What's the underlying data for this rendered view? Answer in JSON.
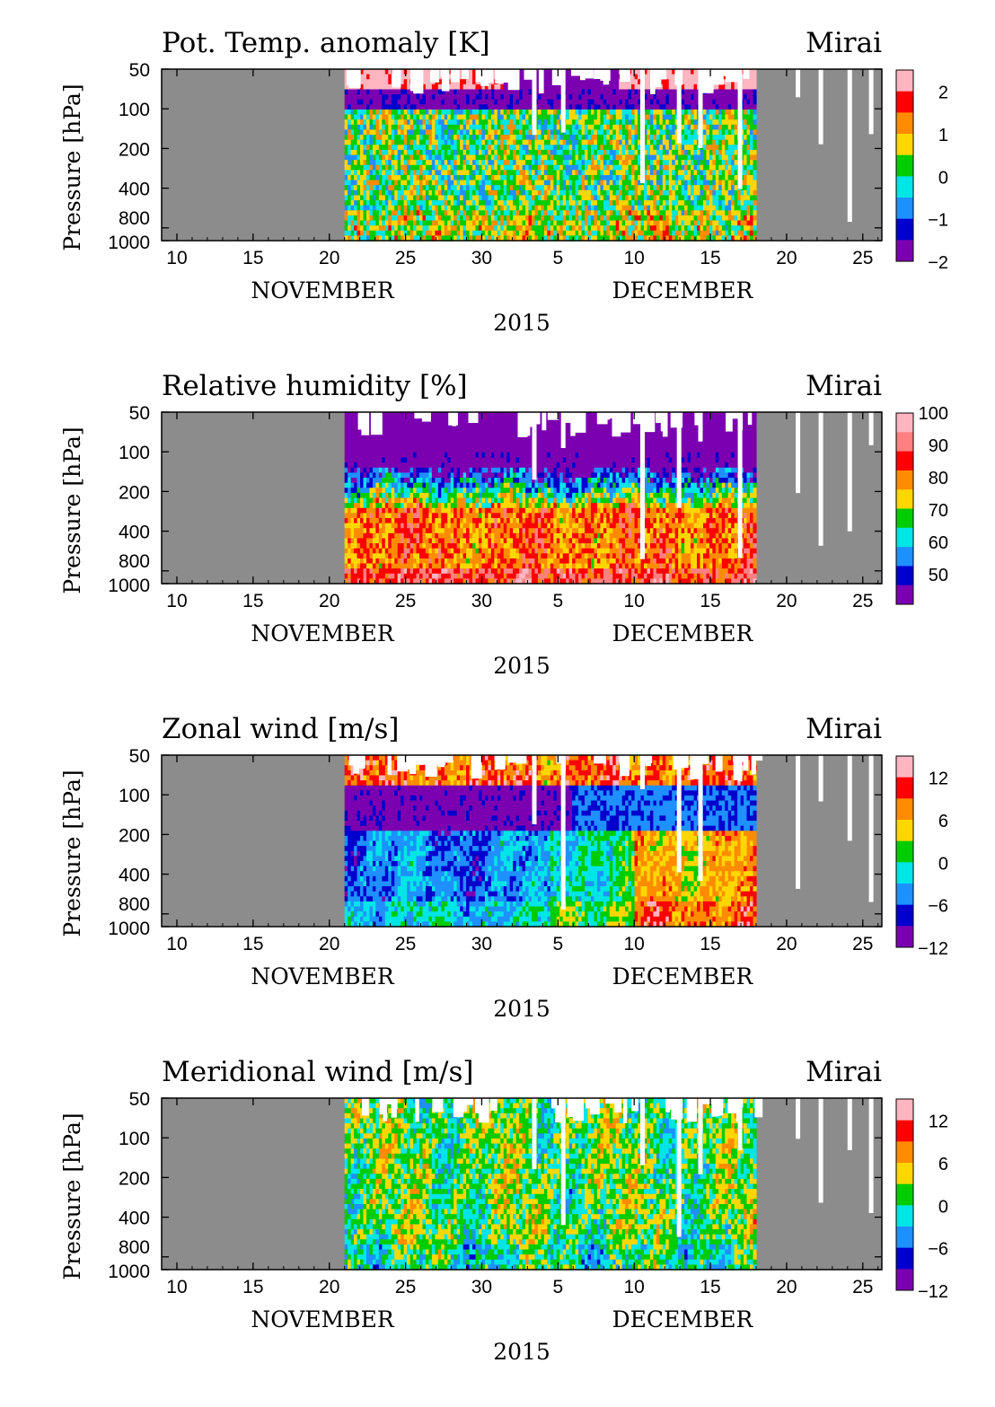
{
  "chart_data": [
    {
      "type": "heatmap",
      "title": "Pot. Temp. anomaly [K]",
      "station": "Mirai",
      "ylabel": "Pressure [hPa]",
      "y_ticks": [
        "50",
        "100",
        "200",
        "400",
        "800",
        "1000"
      ],
      "y_values": [
        50,
        100,
        200,
        400,
        800,
        1000
      ],
      "x_ticks": [
        "10",
        "15",
        "20",
        "25",
        "30",
        "5",
        "10",
        "15",
        "20",
        "25"
      ],
      "month_labels": [
        "NOVEMBER",
        "DECEMBER"
      ],
      "year_label": "2015",
      "observation_period": {
        "start": "2015-11-21",
        "end": "2015-12-18"
      },
      "colorbar": {
        "tick_labels": [
          "2",
          "1",
          "0",
          "−1",
          "−2"
        ],
        "colors": [
          "#ffb6c1",
          "#ff0000",
          "#ff8c00",
          "#ffd700",
          "#00cc00",
          "#00e5e5",
          "#1e90ff",
          "#0000cd",
          "#7b00b0"
        ]
      },
      "pattern": "anomaly"
    },
    {
      "type": "heatmap",
      "title": "Relative humidity [%]",
      "station": "Mirai",
      "ylabel": "Pressure [hPa]",
      "y_ticks": [
        "50",
        "100",
        "200",
        "400",
        "800",
        "1000"
      ],
      "y_values": [
        50,
        100,
        200,
        400,
        800,
        1000
      ],
      "x_ticks": [
        "10",
        "15",
        "20",
        "25",
        "30",
        "5",
        "10",
        "15",
        "20",
        "25"
      ],
      "month_labels": [
        "NOVEMBER",
        "DECEMBER"
      ],
      "year_label": "2015",
      "observation_period": {
        "start": "2015-11-21",
        "end": "2015-12-18"
      },
      "colorbar": {
        "tick_labels": [
          "100",
          "90",
          "80",
          "70",
          "60",
          "50"
        ],
        "colors": [
          "#ffb6c1",
          "#ff8080",
          "#ff0000",
          "#ff8c00",
          "#ffd700",
          "#00cc00",
          "#00e5e5",
          "#1e90ff",
          "#0000cd",
          "#7b00b0"
        ]
      },
      "pattern": "humidity"
    },
    {
      "type": "heatmap",
      "title": "Zonal wind [m/s]",
      "station": "Mirai",
      "ylabel": "Pressure [hPa]",
      "y_ticks": [
        "50",
        "100",
        "200",
        "400",
        "800",
        "1000"
      ],
      "y_values": [
        50,
        100,
        200,
        400,
        800,
        1000
      ],
      "x_ticks": [
        "10",
        "15",
        "20",
        "25",
        "30",
        "5",
        "10",
        "15",
        "20",
        "25"
      ],
      "month_labels": [
        "NOVEMBER",
        "DECEMBER"
      ],
      "year_label": "2015",
      "observation_period": {
        "start": "2015-11-21",
        "end": "2015-12-18"
      },
      "colorbar": {
        "tick_labels": [
          "12",
          "6",
          "0",
          "−6",
          "−12"
        ],
        "colors": [
          "#ffb6c1",
          "#ff0000",
          "#ff8c00",
          "#ffd700",
          "#00cc00",
          "#00e5e5",
          "#1e90ff",
          "#0000cd",
          "#7b00b0"
        ]
      },
      "pattern": "zonal"
    },
    {
      "type": "heatmap",
      "title": "Meridional wind [m/s]",
      "station": "Mirai",
      "ylabel": "Pressure [hPa]",
      "y_ticks": [
        "50",
        "100",
        "200",
        "400",
        "800",
        "1000"
      ],
      "y_values": [
        50,
        100,
        200,
        400,
        800,
        1000
      ],
      "x_ticks": [
        "10",
        "15",
        "20",
        "25",
        "30",
        "5",
        "10",
        "15",
        "20",
        "25"
      ],
      "month_labels": [
        "NOVEMBER",
        "DECEMBER"
      ],
      "year_label": "2015",
      "observation_period": {
        "start": "2015-11-21",
        "end": "2015-12-18"
      },
      "colorbar": {
        "tick_labels": [
          "12",
          "6",
          "0",
          "−6",
          "−12"
        ],
        "colors": [
          "#ffb6c1",
          "#ff0000",
          "#ff8c00",
          "#ffd700",
          "#00cc00",
          "#00e5e5",
          "#1e90ff",
          "#0000cd",
          "#7b00b0"
        ]
      },
      "pattern": "meridional"
    }
  ]
}
